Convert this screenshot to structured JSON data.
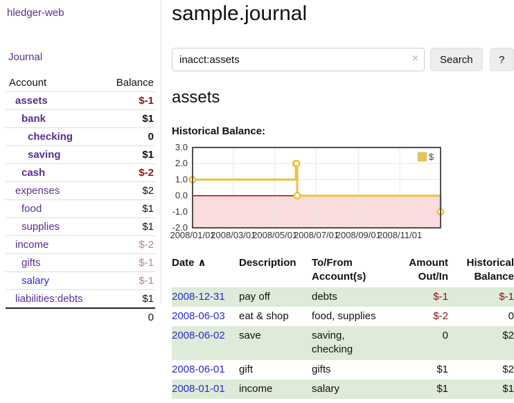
{
  "app": {
    "brand": "hledger-web"
  },
  "colors": {
    "link_purple": "#5b2d90",
    "link_blue": "#2a2ad0",
    "negative_strong": "#8b1515",
    "negative_soft": "#bb8181",
    "table_negative": "#8b1111",
    "row_stripe_green": "#ddebd8",
    "series_gold": "#edc240"
  },
  "sidebar": {
    "journal_link": "Journal",
    "accounts_table": {
      "headers": {
        "account": "Account",
        "balance": "Balance"
      },
      "rows": [
        {
          "name": "assets",
          "balance": "$-1",
          "depth": 1,
          "bold": true,
          "neg": "strong"
        },
        {
          "name": "bank",
          "balance": "$1",
          "depth": 2,
          "bold": true
        },
        {
          "name": "checking",
          "balance": "0",
          "depth": 3,
          "bold": true
        },
        {
          "name": "saving",
          "balance": "$1",
          "depth": 3,
          "bold": true
        },
        {
          "name": "cash",
          "balance": "$-2",
          "depth": 2,
          "bold": true,
          "neg": "strong"
        },
        {
          "name": "expenses",
          "balance": "$2",
          "depth": 1
        },
        {
          "name": "food",
          "balance": "$1",
          "depth": 2
        },
        {
          "name": "supplies",
          "balance": "$1",
          "depth": 2
        },
        {
          "name": "income",
          "balance": "$-2",
          "depth": 1,
          "neg": "soft"
        },
        {
          "name": "gifts",
          "balance": "$-1",
          "depth": 2,
          "neg": "soft"
        },
        {
          "name": "salary",
          "balance": "$-1",
          "depth": 2,
          "neg": "soft",
          "link_color": "blue"
        },
        {
          "name": "liabilities:debts",
          "balance": "$1",
          "depth": 1
        }
      ],
      "total": "0"
    }
  },
  "header": {
    "title": "sample.journal"
  },
  "search": {
    "query": "inacct:assets",
    "clear_icon": "×",
    "button_label": "Search",
    "help_label": "?"
  },
  "account_page": {
    "title": "assets",
    "chart_label": "Historical Balance:"
  },
  "chart_data": {
    "type": "line",
    "title": "Historical Balance",
    "step": true,
    "series": [
      {
        "name": "$",
        "color": "#edc240",
        "points": [
          [
            "2008-01-01",
            1
          ],
          [
            "2008-06-01",
            2
          ],
          [
            "2008-06-02",
            2
          ],
          [
            "2008-06-03",
            0
          ],
          [
            "2008-12-31",
            -1
          ]
        ]
      }
    ],
    "x_range": [
      "2008-01-01",
      "2008-12-31"
    ],
    "ylim": [
      -2,
      3
    ],
    "y_ticks": [
      {
        "label": "3.0",
        "value": 3
      },
      {
        "label": "2.0",
        "value": 2
      },
      {
        "label": "1.0",
        "value": 1
      },
      {
        "label": "0.0",
        "value": 0
      },
      {
        "label": "-1.0",
        "value": -1
      },
      {
        "label": "-2.0",
        "value": -2
      }
    ],
    "x_ticks": [
      {
        "label": "2008/01/01",
        "date": "2008-01-01"
      },
      {
        "label": "2008/03/01",
        "date": "2008-03-01"
      },
      {
        "label": "2008/05/01",
        "date": "2008-05-01"
      },
      {
        "label": "2008/07/01",
        "date": "2008-07-01"
      },
      {
        "label": "2008/09/01",
        "date": "2008-09-01"
      },
      {
        "label": "2008/11/01",
        "date": "2008-11-01"
      }
    ],
    "legend": {
      "position": "top-right",
      "label": "$"
    },
    "grid": true,
    "negative_region_color": "#fbdcdc",
    "zero_line_color": "#a40000"
  },
  "register_table": {
    "headers": {
      "date": "Date",
      "sort_icon": "∧",
      "description": "Description",
      "accounts": "To/From\nAccount(s)",
      "amount": "Amount\nOut/In",
      "balance": "Historical\nBalance"
    },
    "rows": [
      {
        "date": "2008-12-31",
        "description": "pay off",
        "accounts": "debts",
        "amount": "$-1",
        "balance": "$-1",
        "amount_neg": true,
        "balance_neg": true
      },
      {
        "date": "2008-06-03",
        "description": "eat & shop",
        "accounts": "food, supplies",
        "amount": "$-2",
        "balance": "0",
        "amount_neg": true
      },
      {
        "date": "2008-06-02",
        "description": "save",
        "accounts": "saving,\nchecking",
        "amount": "0",
        "balance": "$2"
      },
      {
        "date": "2008-06-01",
        "description": "gift",
        "accounts": "gifts",
        "amount": "$1",
        "balance": "$2"
      },
      {
        "date": "2008-01-01",
        "description": "income",
        "accounts": "salary",
        "amount": "$1",
        "balance": "$1"
      }
    ]
  }
}
